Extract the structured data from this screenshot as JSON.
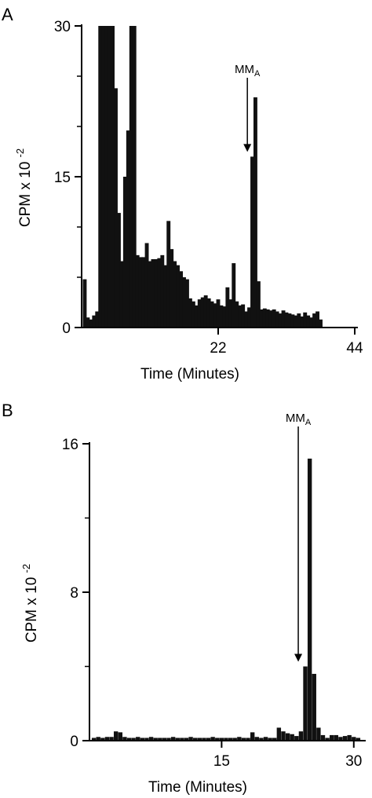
{
  "figure": {
    "panels": [
      {
        "letter": "A"
      },
      {
        "letter": "B"
      }
    ]
  },
  "chart_data": [
    {
      "type": "bar",
      "panel": "A",
      "xlabel": "Time (Minutes)",
      "ylabel_main": "CPM x 10",
      "ylabel_exp": "-2",
      "xlim": [
        0,
        44
      ],
      "ylim": [
        0,
        30
      ],
      "xticks": [
        22,
        44
      ],
      "yticks": [
        0,
        15,
        30
      ],
      "annotation": {
        "label": "MM",
        "sub": "A",
        "x": 26.7
      },
      "x": [
        0.5,
        1,
        1.5,
        2,
        2.5,
        3,
        3.5,
        4,
        4.5,
        5,
        5.5,
        6,
        6.5,
        7,
        7.5,
        8,
        8.5,
        9,
        9.5,
        10,
        10.5,
        11,
        11.5,
        12,
        12.5,
        13,
        13.5,
        14,
        14.5,
        15,
        15.5,
        16,
        16.5,
        17,
        17.5,
        18,
        18.5,
        19,
        19.5,
        20,
        20.5,
        21,
        21.5,
        22,
        22.5,
        23,
        23.5,
        24,
        24.5,
        25,
        25.5,
        26,
        26.5,
        27,
        27.5,
        28,
        28.5,
        29,
        29.5,
        30,
        30.5,
        31,
        31.5,
        32,
        32.5,
        33,
        33.5,
        34,
        34.5,
        35,
        35.5,
        36,
        36.5,
        37,
        37.5,
        38,
        38.5
      ],
      "values": [
        4.8,
        1.0,
        0.8,
        1.2,
        1.6,
        30,
        30,
        30,
        30,
        30,
        23.8,
        11.4,
        6.6,
        15.0,
        19.6,
        30,
        30,
        7.2,
        7.0,
        7.0,
        8.4,
        6.6,
        6.8,
        6.8,
        6.9,
        7.2,
        6.2,
        10.6,
        7.8,
        6.6,
        6.2,
        5.6,
        5.0,
        4.8,
        2.9,
        2.6,
        2.2,
        2.8,
        3.0,
        3.2,
        2.9,
        2.6,
        2.4,
        2.8,
        2.2,
        2.1,
        4.0,
        2.8,
        6.4,
        2.6,
        2.2,
        2.3,
        1.6,
        2.0,
        17.0,
        22.9,
        4.6,
        1.8,
        1.9,
        1.8,
        1.7,
        1.8,
        1.6,
        1.4,
        1.7,
        1.5,
        1.4,
        1.3,
        1.2,
        1.4,
        1.1,
        1.5,
        1.2,
        1.0,
        1.4,
        1.6,
        0.8
      ]
    },
    {
      "type": "bar",
      "panel": "B",
      "xlabel": "Time (Minutes)",
      "ylabel_main": "CPM x 10",
      "ylabel_exp": "-2",
      "xlim": [
        0,
        31
      ],
      "ylim": [
        0,
        16
      ],
      "xticks": [
        15,
        30
      ],
      "yticks": [
        0,
        8,
        16
      ],
      "annotation": {
        "label": "MM",
        "sub": "A",
        "x": 23.7
      },
      "x": [
        0.5,
        1,
        1.5,
        2,
        2.5,
        3,
        3.5,
        4,
        4.5,
        5,
        5.5,
        6,
        6.5,
        7,
        7.5,
        8,
        8.5,
        9,
        9.5,
        10,
        10.5,
        11,
        11.5,
        12,
        12.5,
        13,
        13.5,
        14,
        14.5,
        15,
        15.5,
        16,
        16.5,
        17,
        17.5,
        18,
        18.5,
        19,
        19.5,
        20,
        20.5,
        21,
        21.5,
        22,
        22.5,
        23,
        23.5,
        24,
        24.5,
        25,
        25.5,
        26,
        26.5,
        27,
        27.5,
        28,
        28.5,
        29,
        29.5,
        30,
        30.5
      ],
      "values": [
        0.15,
        0.2,
        0.15,
        0.2,
        0.2,
        0.5,
        0.45,
        0.2,
        0.15,
        0.15,
        0.2,
        0.15,
        0.15,
        0.2,
        0.15,
        0.15,
        0.15,
        0.15,
        0.2,
        0.15,
        0.15,
        0.15,
        0.2,
        0.15,
        0.15,
        0.15,
        0.15,
        0.2,
        0.15,
        0.15,
        0.15,
        0.15,
        0.15,
        0.2,
        0.15,
        0.15,
        0.45,
        0.2,
        0.15,
        0.2,
        0.15,
        0.15,
        0.7,
        0.5,
        0.4,
        0.35,
        0.25,
        0.5,
        4.0,
        15.2,
        3.6,
        0.7,
        0.3,
        0.15,
        0.3,
        0.3,
        0.2,
        0.25,
        0.3,
        0.2,
        0.15
      ]
    }
  ]
}
